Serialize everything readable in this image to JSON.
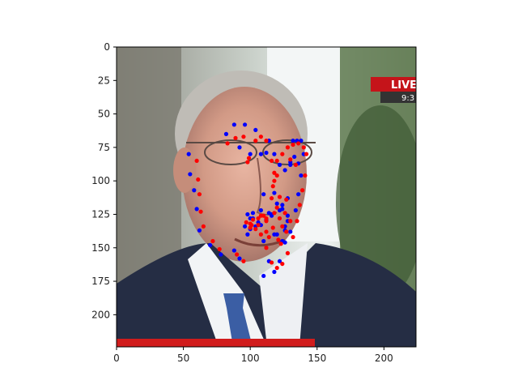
{
  "figure": {
    "image_description_semantic": "face-photo",
    "x_ticks": [
      0,
      50,
      100,
      150,
      200
    ],
    "y_ticks": [
      0,
      25,
      50,
      75,
      100,
      125,
      150,
      175,
      200
    ],
    "x_range": [
      0,
      224
    ],
    "y_range": [
      0,
      224
    ],
    "overlay_text": "LIVE",
    "overlay_subtext": "9:3"
  },
  "chart_data": {
    "type": "scatter",
    "xlim": [
      0,
      224
    ],
    "ylim": [
      224,
      0
    ],
    "grid": false,
    "series": [
      {
        "color": "#0000ff",
        "x": [
          54,
          55,
          58,
          60,
          62,
          70,
          78,
          82,
          88,
          92,
          96,
          100,
          104,
          108,
          112,
          114,
          118,
          122,
          126,
          130,
          133,
          135,
          138,
          140,
          138,
          136,
          134,
          130,
          126,
          122,
          118,
          114,
          110,
          106,
          102,
          98,
          92,
          88,
          96,
          100,
          102,
          108,
          110,
          114,
          116,
          118,
          120,
          124,
          126,
          128,
          128,
          124,
          120,
          116,
          112,
          108,
          104,
          100,
          98,
          110,
          118,
          122,
          126,
          128,
          132,
          136,
          130,
          124
        ],
        "y": [
          80,
          95,
          107,
          121,
          137,
          148,
          155,
          65,
          58,
          75,
          58,
          80,
          62,
          80,
          79,
          70,
          80,
          88,
          92,
          86,
          82,
          70,
          70,
          80,
          96,
          110,
          122,
          138,
          146,
          160,
          168,
          160,
          145,
          131,
          128,
          125,
          158,
          152,
          134,
          136,
          124,
          122,
          110,
          124,
          125,
          140,
          140,
          145,
          134,
          126,
          130,
          121,
          117,
          126,
          129,
          133,
          134,
          128,
          140,
          171,
          109,
          122,
          137,
          113,
          70,
          87,
          88,
          118
        ]
      },
      {
        "color": "#ff0000",
        "x": [
          60,
          61,
          62,
          63,
          65,
          72,
          77,
          83,
          89,
          95,
          99,
          104,
          108,
          112,
          116,
          118,
          120,
          124,
          128,
          132,
          136,
          140,
          142,
          141,
          139,
          137,
          135,
          132,
          128,
          124,
          120,
          116,
          112,
          108,
          104,
          100,
          95,
          90,
          97,
          101,
          106,
          110,
          112,
          114,
          117,
          121,
          123,
          127,
          130,
          127,
          122,
          118,
          112,
          108,
          106,
          102,
          100,
          98,
          120,
          117,
          116,
          118,
          126,
          124,
          130,
          134,
          122,
          120,
          112
        ],
        "y": [
          85,
          99,
          110,
          123,
          134,
          145,
          151,
          72,
          68,
          67,
          83,
          70,
          67,
          70,
          85,
          94,
          85,
          80,
          75,
          73,
          72,
          75,
          80,
          96,
          107,
          118,
          130,
          142,
          154,
          162,
          165,
          161,
          150,
          140,
          136,
          132,
          160,
          155,
          131,
          133,
          128,
          126,
          138,
          142,
          135,
          144,
          147,
          138,
          130,
          114,
          112,
          100,
          128,
          126,
          133,
          129,
          135,
          86,
          96,
          104,
          113,
          124,
          124,
          134,
          84,
          88,
          128,
          120,
          130
        ]
      }
    ]
  }
}
